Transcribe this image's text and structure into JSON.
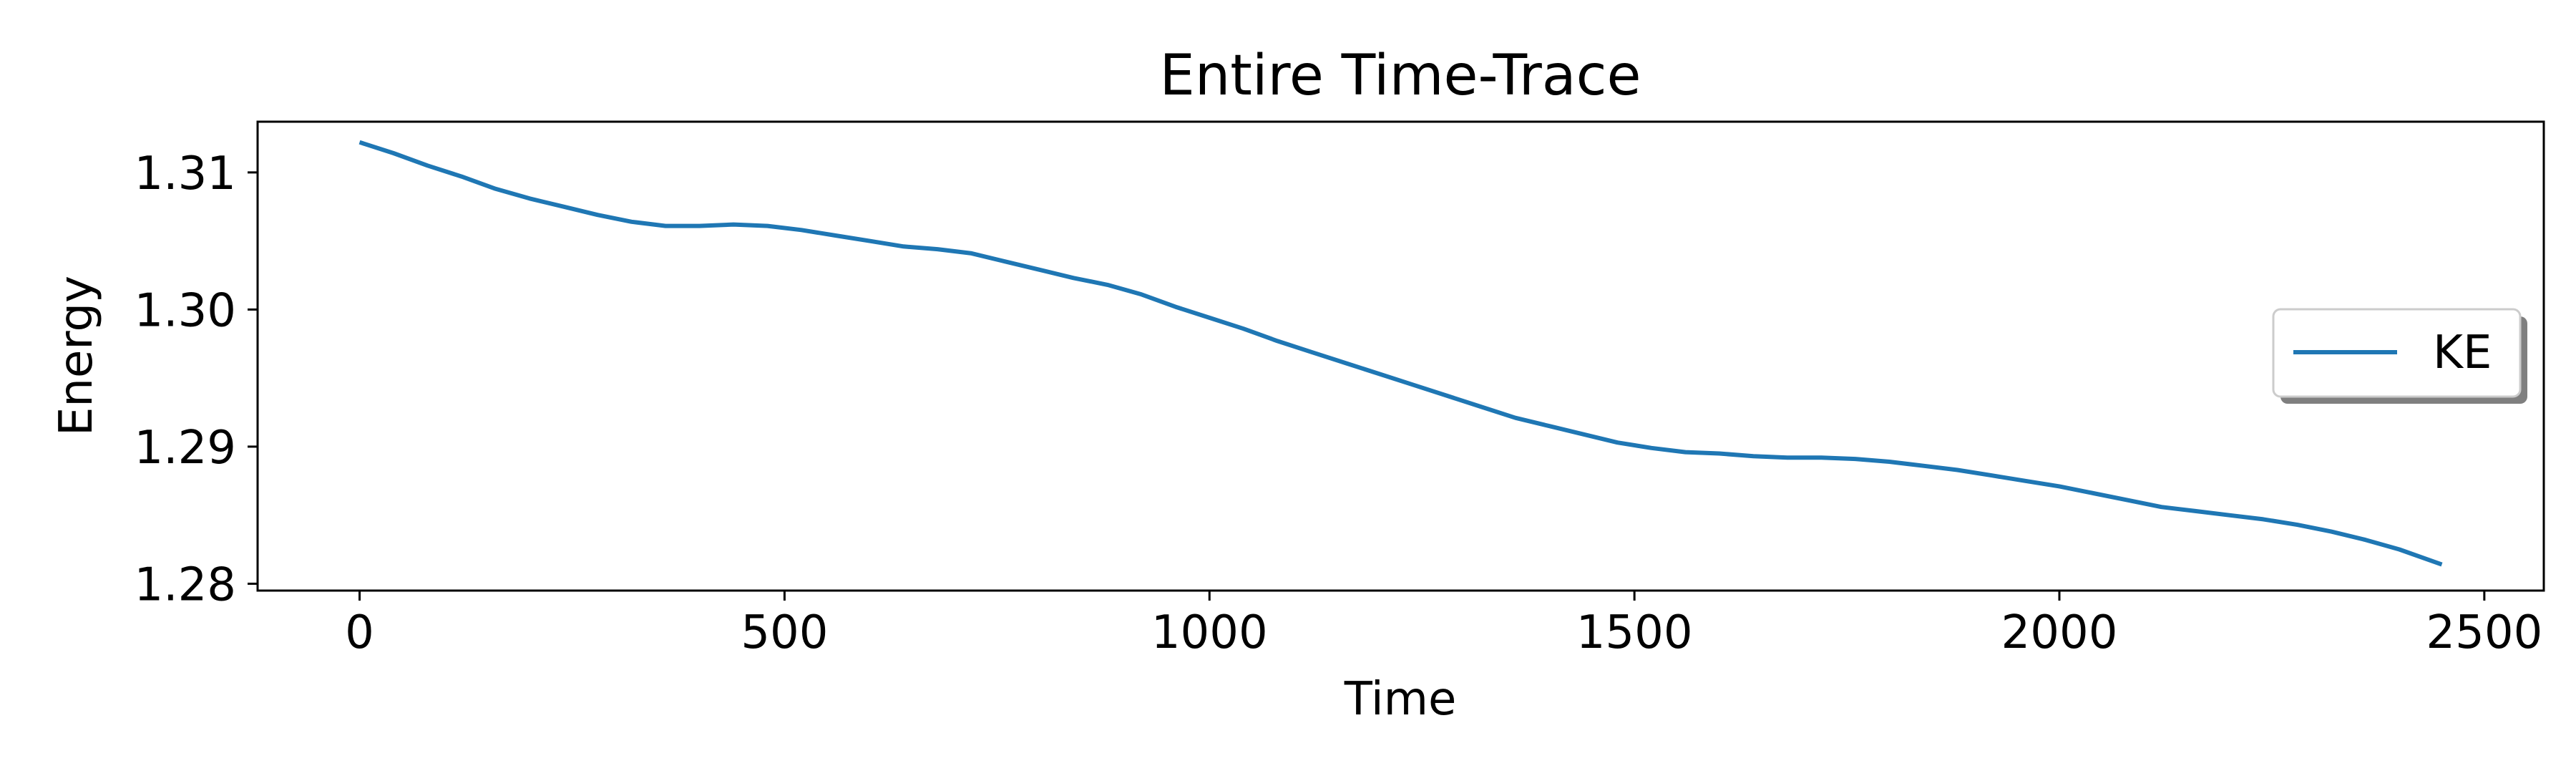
{
  "chart_data": {
    "type": "line",
    "title": "Entire Time-Trace",
    "xlabel": "Time",
    "ylabel": "Energy",
    "xlim": [
      -120,
      2570
    ],
    "ylim": [
      1.2795,
      1.3137
    ],
    "xticks": [
      0,
      500,
      1000,
      1500,
      2000,
      2500
    ],
    "xtick_labels": [
      "0",
      "500",
      "1000",
      "1500",
      "2000",
      "2500"
    ],
    "yticks": [
      1.28,
      1.29,
      1.3,
      1.31
    ],
    "ytick_labels": [
      "1.28",
      "1.29",
      "1.30",
      "1.31"
    ],
    "grid": false,
    "legend": {
      "placement": "center-right",
      "entries": [
        "KE"
      ]
    },
    "series": [
      {
        "name": "KE",
        "color": "#1f77b4",
        "x": [
          0,
          40,
          80,
          120,
          160,
          200,
          240,
          280,
          320,
          360,
          400,
          440,
          480,
          520,
          560,
          600,
          640,
          680,
          720,
          760,
          800,
          840,
          880,
          920,
          960,
          1000,
          1040,
          1080,
          1120,
          1160,
          1200,
          1240,
          1280,
          1320,
          1360,
          1400,
          1440,
          1480,
          1520,
          1560,
          1600,
          1640,
          1680,
          1720,
          1760,
          1800,
          1840,
          1880,
          1920,
          1960,
          2000,
          2040,
          2080,
          2120,
          2160,
          2200,
          2240,
          2280,
          2320,
          2360,
          2400,
          2450
        ],
        "y": [
          1.3122,
          1.3114,
          1.3105,
          1.3097,
          1.3088,
          1.3081,
          1.3075,
          1.3069,
          1.3064,
          1.3061,
          1.3061,
          1.3062,
          1.3061,
          1.3058,
          1.3054,
          1.305,
          1.3046,
          1.3044,
          1.3041,
          1.3035,
          1.3029,
          1.3023,
          1.3018,
          1.3011,
          1.3002,
          1.2994,
          1.2986,
          1.2977,
          1.2969,
          1.2961,
          1.2953,
          1.2945,
          1.2937,
          1.2929,
          1.2921,
          1.2915,
          1.2909,
          1.2903,
          1.2899,
          1.2896,
          1.2895,
          1.2893,
          1.2892,
          1.2892,
          1.2891,
          1.2889,
          1.2886,
          1.2883,
          1.2879,
          1.2875,
          1.2871,
          1.2866,
          1.2861,
          1.2856,
          1.2853,
          1.285,
          1.2847,
          1.2843,
          1.2838,
          1.2832,
          1.2825,
          1.2814
        ]
      }
    ]
  }
}
